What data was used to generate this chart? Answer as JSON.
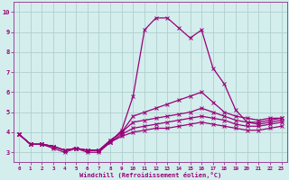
{
  "xlabel": "Windchill (Refroidissement éolien,°C)",
  "background_color": "#d4eeed",
  "grid_color": "#b0cece",
  "line_color": "#990077",
  "x_values": [
    0,
    1,
    2,
    3,
    4,
    5,
    6,
    7,
    8,
    9,
    10,
    11,
    12,
    13,
    14,
    15,
    16,
    17,
    18,
    19,
    20,
    21,
    22,
    23
  ],
  "series": [
    [
      3.9,
      3.4,
      3.4,
      3.2,
      3.0,
      3.2,
      3.0,
      3.0,
      3.5,
      4.1,
      5.8,
      9.1,
      9.7,
      9.7,
      9.2,
      8.7,
      9.1,
      7.2,
      6.4,
      5.1,
      4.5,
      4.5,
      4.6,
      4.7
    ],
    [
      3.9,
      3.4,
      3.4,
      3.3,
      3.1,
      3.2,
      3.1,
      3.1,
      3.6,
      4.0,
      4.8,
      5.0,
      5.2,
      5.4,
      5.6,
      5.8,
      6.0,
      5.5,
      5.0,
      4.8,
      4.7,
      4.6,
      4.7,
      4.7
    ],
    [
      3.9,
      3.4,
      3.4,
      3.3,
      3.1,
      3.2,
      3.1,
      3.1,
      3.6,
      4.0,
      4.5,
      4.6,
      4.7,
      4.8,
      4.9,
      5.0,
      5.2,
      5.0,
      4.8,
      4.6,
      4.5,
      4.4,
      4.5,
      4.6
    ],
    [
      3.9,
      3.4,
      3.4,
      3.3,
      3.1,
      3.2,
      3.1,
      3.1,
      3.5,
      3.9,
      4.2,
      4.3,
      4.4,
      4.5,
      4.6,
      4.7,
      4.8,
      4.7,
      4.6,
      4.4,
      4.3,
      4.3,
      4.4,
      4.5
    ],
    [
      3.9,
      3.4,
      3.4,
      3.3,
      3.1,
      3.2,
      3.1,
      3.1,
      3.5,
      3.8,
      4.0,
      4.1,
      4.2,
      4.2,
      4.3,
      4.4,
      4.5,
      4.4,
      4.3,
      4.2,
      4.1,
      4.1,
      4.2,
      4.3
    ]
  ],
  "xlim": [
    -0.5,
    23.5
  ],
  "ylim": [
    2.5,
    10.5
  ],
  "xticks": [
    0,
    1,
    2,
    3,
    4,
    5,
    6,
    7,
    8,
    9,
    10,
    11,
    12,
    13,
    14,
    15,
    16,
    17,
    18,
    19,
    20,
    21,
    22,
    23
  ],
  "yticks": [
    3,
    4,
    5,
    6,
    7,
    8,
    9,
    10
  ],
  "spine_color": "#994499"
}
